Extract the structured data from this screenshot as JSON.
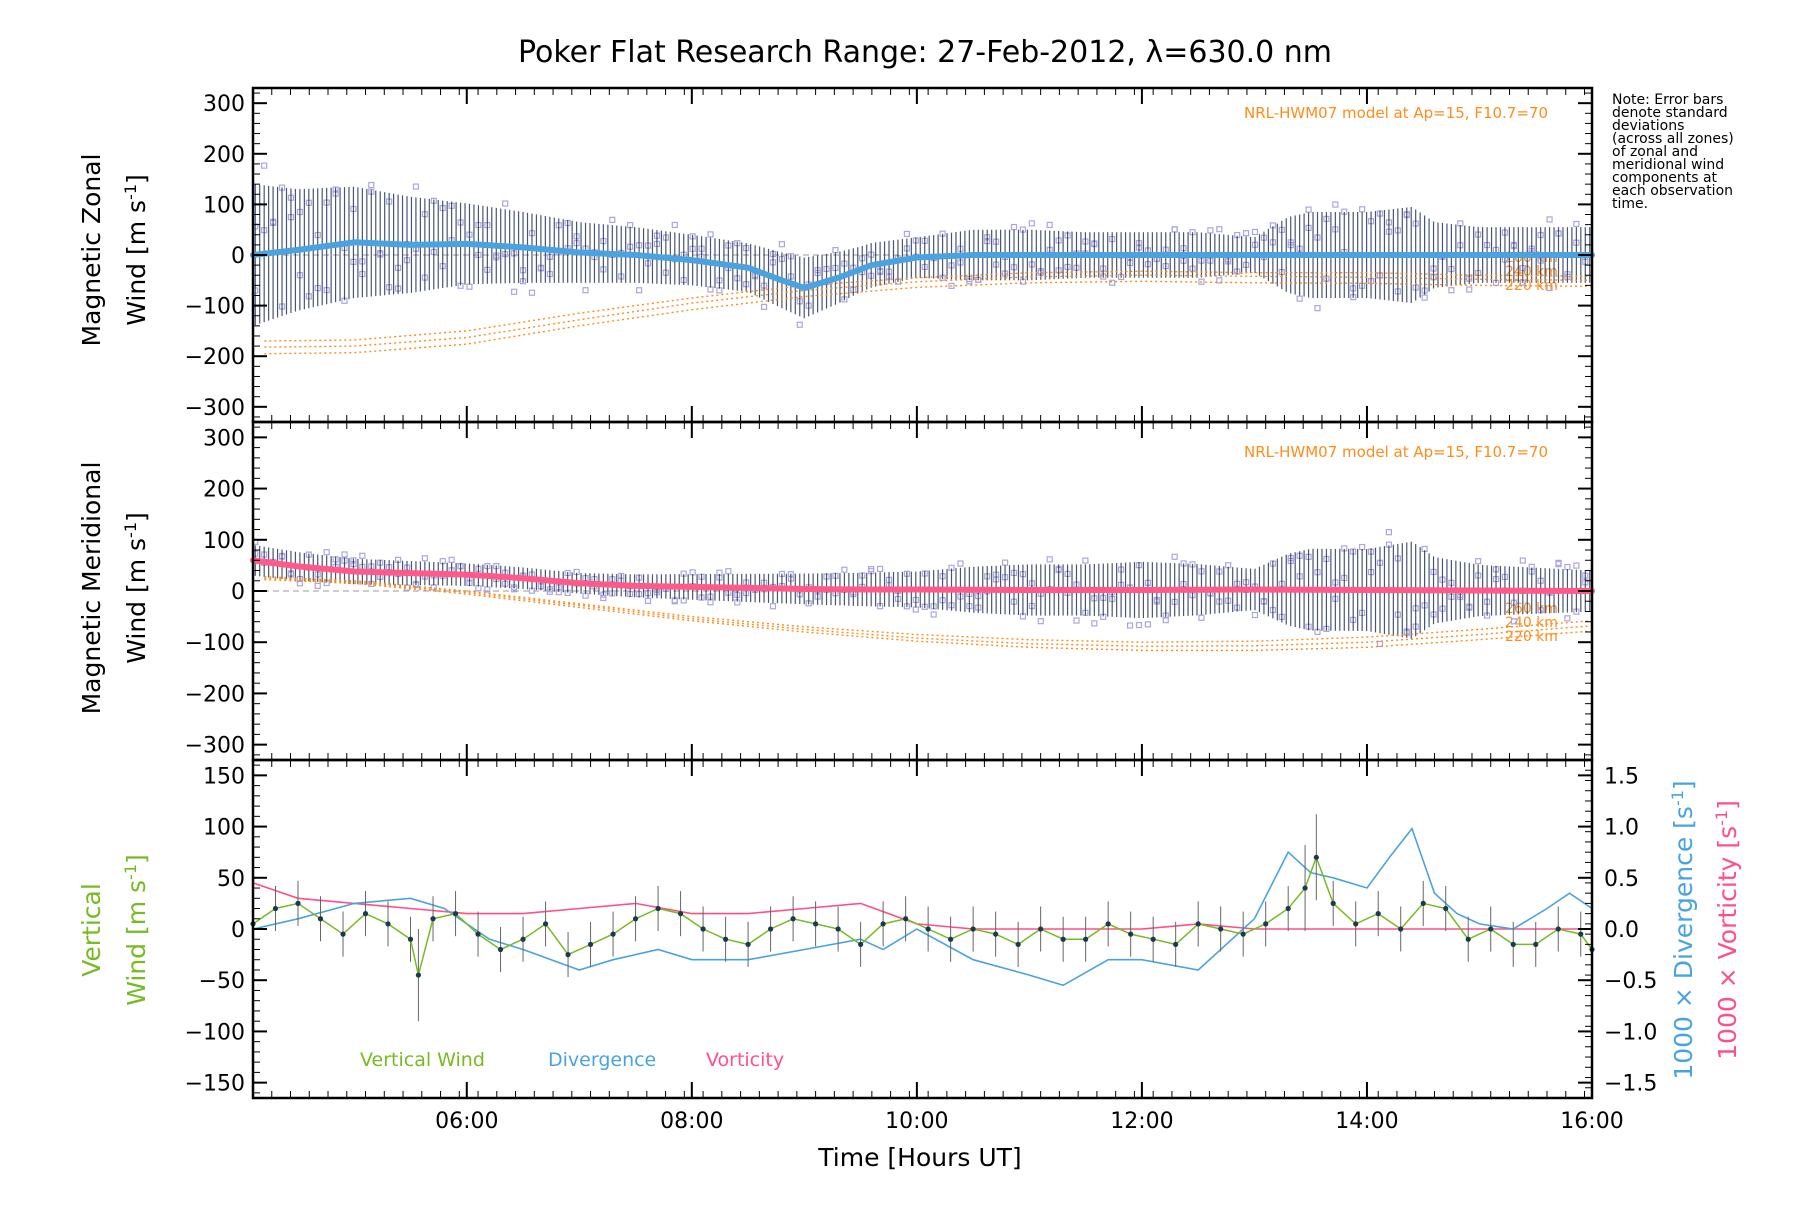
{
  "chart_data": {
    "title": "Poker Flat Research Range: 27-Feb-2012, λ=630.0 nm",
    "note": [
      "Note: Error bars",
      "denote standard",
      "deviations",
      "(across all zones)",
      "of zonal and",
      "meridional wind",
      "components at",
      "each observation",
      "time."
    ],
    "xlabel": "Time [Hours UT]",
    "xlim": [
      4.1,
      16.0
    ],
    "x_tick_values": [
      6,
      8,
      10,
      12,
      14,
      16
    ],
    "x_tick_labels": [
      "06:00",
      "08:00",
      "10:00",
      "12:00",
      "14:00",
      "16:00"
    ],
    "colors": {
      "zonal_mean": "#4aa3df",
      "meridional_mean": "#ff5a8a",
      "model": "#ff8c1a",
      "scatter": "#aaa6e0",
      "errorbar": "#1a2a50",
      "vertical": "#77bb22",
      "divergence": "#4aa3df",
      "vorticity": "#ff4f88"
    },
    "panels": [
      {
        "type": "line",
        "id": "zonal",
        "ylabel_line1": "Magnetic Zonal",
        "ylabel_line2": "Wind [m s",
        "ylabel_sup": "-1",
        "ylabel_close": "]",
        "ylim": [
          -330,
          330
        ],
        "y_tick_values": [
          300,
          200,
          100,
          0,
          -100,
          -200,
          -300
        ],
        "y_tick_labels": [
          "300",
          "200",
          "100",
          "0",
          "−100",
          "−200",
          "−300"
        ],
        "model_label": "NRL-HWM07 model at Ap=15, F10.7=70",
        "model_alt_labels": [
          "260 km",
          "240 km",
          "220 km"
        ],
        "mean_wind": {
          "x": [
            4.1,
            4.5,
            5.0,
            5.5,
            6.0,
            6.5,
            7.0,
            7.5,
            8.0,
            8.5,
            8.8,
            9.0,
            9.3,
            9.6,
            10.0,
            10.5,
            11.0,
            11.5,
            12.0,
            12.5,
            13.0,
            13.5,
            14.0,
            14.5,
            15.0,
            15.5,
            16.0
          ],
          "y": [
            0,
            10,
            25,
            20,
            22,
            15,
            5,
            0,
            -10,
            -25,
            -50,
            -65,
            -45,
            -20,
            -5,
            0,
            0,
            0,
            0,
            0,
            0,
            0,
            0,
            0,
            0,
            0,
            0
          ]
        },
        "error_sd": {
          "x": [
            4.1,
            4.5,
            5.0,
            5.5,
            6.0,
            6.5,
            7.0,
            7.5,
            8.0,
            8.5,
            9.0,
            9.5,
            10.0,
            10.5,
            11.0,
            11.5,
            12.0,
            12.5,
            13.0,
            13.3,
            13.5,
            14.0,
            14.4,
            14.6,
            15.0,
            15.5,
            16.0
          ],
          "y": [
            140,
            120,
            110,
            95,
            80,
            70,
            60,
            55,
            50,
            48,
            60,
            45,
            40,
            50,
            50,
            45,
            45,
            45,
            35,
            75,
            85,
            85,
            95,
            65,
            55,
            55,
            55
          ]
        },
        "model_curves": [
          {
            "x": [
              4.2,
              5.0,
              6.0,
              7.0,
              8.0,
              9.0,
              10.0,
              11.0,
              12.0,
              13.0,
              14.0,
              15.0,
              16.0
            ],
            "y": [
              -170,
              -168,
              -150,
              -115,
              -85,
              -60,
              -45,
              -35,
              -32,
              -35,
              -35,
              -40,
              -42
            ]
          },
          {
            "x": [
              4.2,
              5.0,
              6.0,
              7.0,
              8.0,
              9.0,
              10.0,
              11.0,
              12.0,
              13.0,
              14.0,
              15.0,
              16.0
            ],
            "y": [
              -182,
              -180,
              -163,
              -128,
              -95,
              -70,
              -53,
              -43,
              -40,
              -42,
              -44,
              -48,
              -50
            ]
          },
          {
            "x": [
              4.2,
              5.0,
              6.0,
              7.0,
              8.0,
              9.0,
              10.0,
              11.0,
              12.0,
              13.0,
              14.0,
              15.0,
              16.0
            ],
            "y": [
              -195,
              -193,
              -176,
              -140,
              -108,
              -82,
              -64,
              -55,
              -52,
              -55,
              -56,
              -60,
              -62
            ]
          }
        ]
      },
      {
        "type": "line",
        "id": "meridional",
        "ylabel_line1": "Magnetic Meridional",
        "ylabel_line2": "Wind [m s",
        "ylabel_sup": "-1",
        "ylabel_close": "]",
        "ylim": [
          -330,
          330
        ],
        "y_tick_values": [
          300,
          200,
          100,
          0,
          -100,
          -200,
          -300
        ],
        "y_tick_labels": [
          "300",
          "200",
          "100",
          "0",
          "−100",
          "−200",
          "−300"
        ],
        "model_label": "NRL-HWM07 model at Ap=15, F10.7=70",
        "model_alt_labels": [
          "260 km",
          "240 km",
          "220 km"
        ],
        "mean_wind": {
          "x": [
            4.1,
            4.5,
            5.0,
            5.5,
            6.0,
            6.5,
            7.0,
            7.5,
            8.0,
            8.5,
            9.0,
            9.5,
            10.0,
            11.0,
            12.0,
            13.0,
            14.0,
            15.0,
            16.0
          ],
          "y": [
            60,
            48,
            38,
            35,
            32,
            25,
            15,
            10,
            8,
            6,
            4,
            3,
            3,
            2,
            2,
            3,
            2,
            1,
            0
          ]
        },
        "error_sd": {
          "x": [
            4.1,
            5.0,
            6.0,
            7.0,
            8.0,
            9.0,
            10.0,
            10.5,
            11.0,
            11.5,
            12.0,
            12.5,
            13.0,
            13.3,
            13.5,
            14.0,
            14.4,
            14.6,
            15.0,
            15.5,
            16.0
          ],
          "y": [
            30,
            25,
            22,
            20,
            25,
            30,
            35,
            45,
            50,
            50,
            55,
            50,
            40,
            70,
            80,
            80,
            95,
            65,
            50,
            45,
            40
          ]
        },
        "model_curves": [
          {
            "x": [
              4.2,
              5.0,
              6.0,
              7.0,
              8.0,
              9.0,
              10.0,
              11.0,
              12.0,
              13.0,
              14.0,
              15.0,
              16.0
            ],
            "y": [
              28,
              20,
              0,
              -25,
              -50,
              -70,
              -85,
              -95,
              -100,
              -98,
              -90,
              -75,
              -58
            ]
          },
          {
            "x": [
              4.2,
              5.0,
              6.0,
              7.0,
              8.0,
              9.0,
              10.0,
              11.0,
              12.0,
              13.0,
              14.0,
              15.0,
              16.0
            ],
            "y": [
              25,
              18,
              -3,
              -28,
              -54,
              -75,
              -92,
              -103,
              -108,
              -107,
              -100,
              -85,
              -68
            ]
          },
          {
            "x": [
              4.2,
              5.0,
              6.0,
              7.0,
              8.0,
              9.0,
              10.0,
              11.0,
              12.0,
              13.0,
              14.0,
              15.0,
              16.0
            ],
            "y": [
              22,
              15,
              -6,
              -32,
              -58,
              -80,
              -98,
              -110,
              -116,
              -116,
              -110,
              -95,
              -78
            ]
          }
        ]
      },
      {
        "type": "line",
        "id": "vertical",
        "ylabel_line1": "Vertical",
        "ylabel_line2": "Wind [m s",
        "ylabel_sup": "-1",
        "ylabel_close": "]",
        "ylim": [
          -165,
          165
        ],
        "y_tick_values": [
          150,
          100,
          50,
          0,
          -50,
          -100,
          -150
        ],
        "y_tick_labels": [
          "150",
          "100",
          "50",
          "0",
          "−50",
          "−100",
          "−150"
        ],
        "y2lim": [
          -1.65,
          1.65
        ],
        "y2_tick_values": [
          1.5,
          1.0,
          0.5,
          0.0,
          -0.5,
          -1.0,
          -1.5
        ],
        "y2_tick_labels": [
          "1.5",
          "1.0",
          "0.5",
          "0.0",
          "−0.5",
          "−1.0",
          "−1.5"
        ],
        "y2label_div": "1000 × Divergence [s",
        "y2label_vort": "1000 × Vorticity [s",
        "y2label_sup": "-1",
        "y2label_close": "]",
        "legend": [
          "Vertical Wind",
          "Divergence",
          "Vorticity"
        ],
        "legend_position": "bottom-left",
        "vertical_wind": {
          "x": [
            4.1,
            4.3,
            4.5,
            4.7,
            4.9,
            5.1,
            5.3,
            5.5,
            5.57,
            5.7,
            5.9,
            6.1,
            6.3,
            6.5,
            6.7,
            6.9,
            7.1,
            7.3,
            7.5,
            7.7,
            7.9,
            8.1,
            8.3,
            8.5,
            8.7,
            8.9,
            9.1,
            9.3,
            9.5,
            9.7,
            9.9,
            10.1,
            10.3,
            10.5,
            10.7,
            10.9,
            11.1,
            11.3,
            11.5,
            11.7,
            11.9,
            12.1,
            12.3,
            12.5,
            12.7,
            12.9,
            13.1,
            13.3,
            13.45,
            13.55,
            13.7,
            13.9,
            14.1,
            14.3,
            14.5,
            14.7,
            14.9,
            15.1,
            15.3,
            15.5,
            15.7,
            15.9,
            16.0
          ],
          "y": [
            5,
            20,
            25,
            10,
            -5,
            15,
            5,
            -10,
            -45,
            10,
            15,
            -5,
            -20,
            -10,
            5,
            -25,
            -15,
            -5,
            10,
            20,
            15,
            0,
            -10,
            -15,
            0,
            10,
            5,
            0,
            -15,
            5,
            10,
            0,
            -10,
            0,
            -5,
            -15,
            0,
            -10,
            -10,
            5,
            -5,
            -10,
            -15,
            5,
            0,
            -5,
            5,
            20,
            40,
            70,
            25,
            5,
            15,
            0,
            25,
            20,
            -10,
            0,
            -15,
            -15,
            0,
            -5,
            -20
          ]
        },
        "divergence": {
          "x": [
            4.1,
            4.5,
            5.0,
            5.5,
            5.8,
            6.2,
            6.5,
            7.0,
            7.3,
            7.7,
            8.0,
            8.5,
            9.0,
            9.5,
            9.7,
            10.0,
            10.5,
            11.0,
            11.3,
            11.7,
            12.0,
            12.5,
            13.0,
            13.3,
            13.5,
            13.7,
            14.0,
            14.2,
            14.4,
            14.6,
            14.8,
            15.0,
            15.3,
            15.6,
            15.8,
            16.0
          ],
          "y": [
            0.0,
            0.1,
            0.25,
            0.3,
            0.2,
            -0.1,
            -0.2,
            -0.4,
            -0.3,
            -0.2,
            -0.3,
            -0.3,
            -0.2,
            -0.1,
            -0.2,
            0.0,
            -0.3,
            -0.45,
            -0.55,
            -0.3,
            -0.3,
            -0.4,
            0.1,
            0.75,
            0.55,
            0.5,
            0.4,
            0.7,
            0.98,
            0.35,
            0.15,
            0.05,
            0.0,
            0.2,
            0.35,
            0.2
          ]
        },
        "vorticity": {
          "x": [
            4.1,
            4.5,
            5.0,
            5.5,
            6.0,
            6.5,
            7.0,
            7.5,
            8.0,
            8.5,
            9.0,
            9.5,
            10.0,
            10.5,
            11.0,
            11.5,
            12.0,
            12.5,
            13.0,
            13.5,
            14.0,
            14.5,
            15.0,
            15.5,
            16.0
          ],
          "y": [
            0.45,
            0.3,
            0.25,
            0.2,
            0.15,
            0.15,
            0.2,
            0.25,
            0.15,
            0.15,
            0.2,
            0.25,
            0.05,
            0.0,
            0.0,
            0.0,
            0.0,
            0.05,
            0.0,
            0.0,
            0.0,
            0.0,
            0.0,
            0.0,
            0.0
          ]
        }
      }
    ]
  }
}
